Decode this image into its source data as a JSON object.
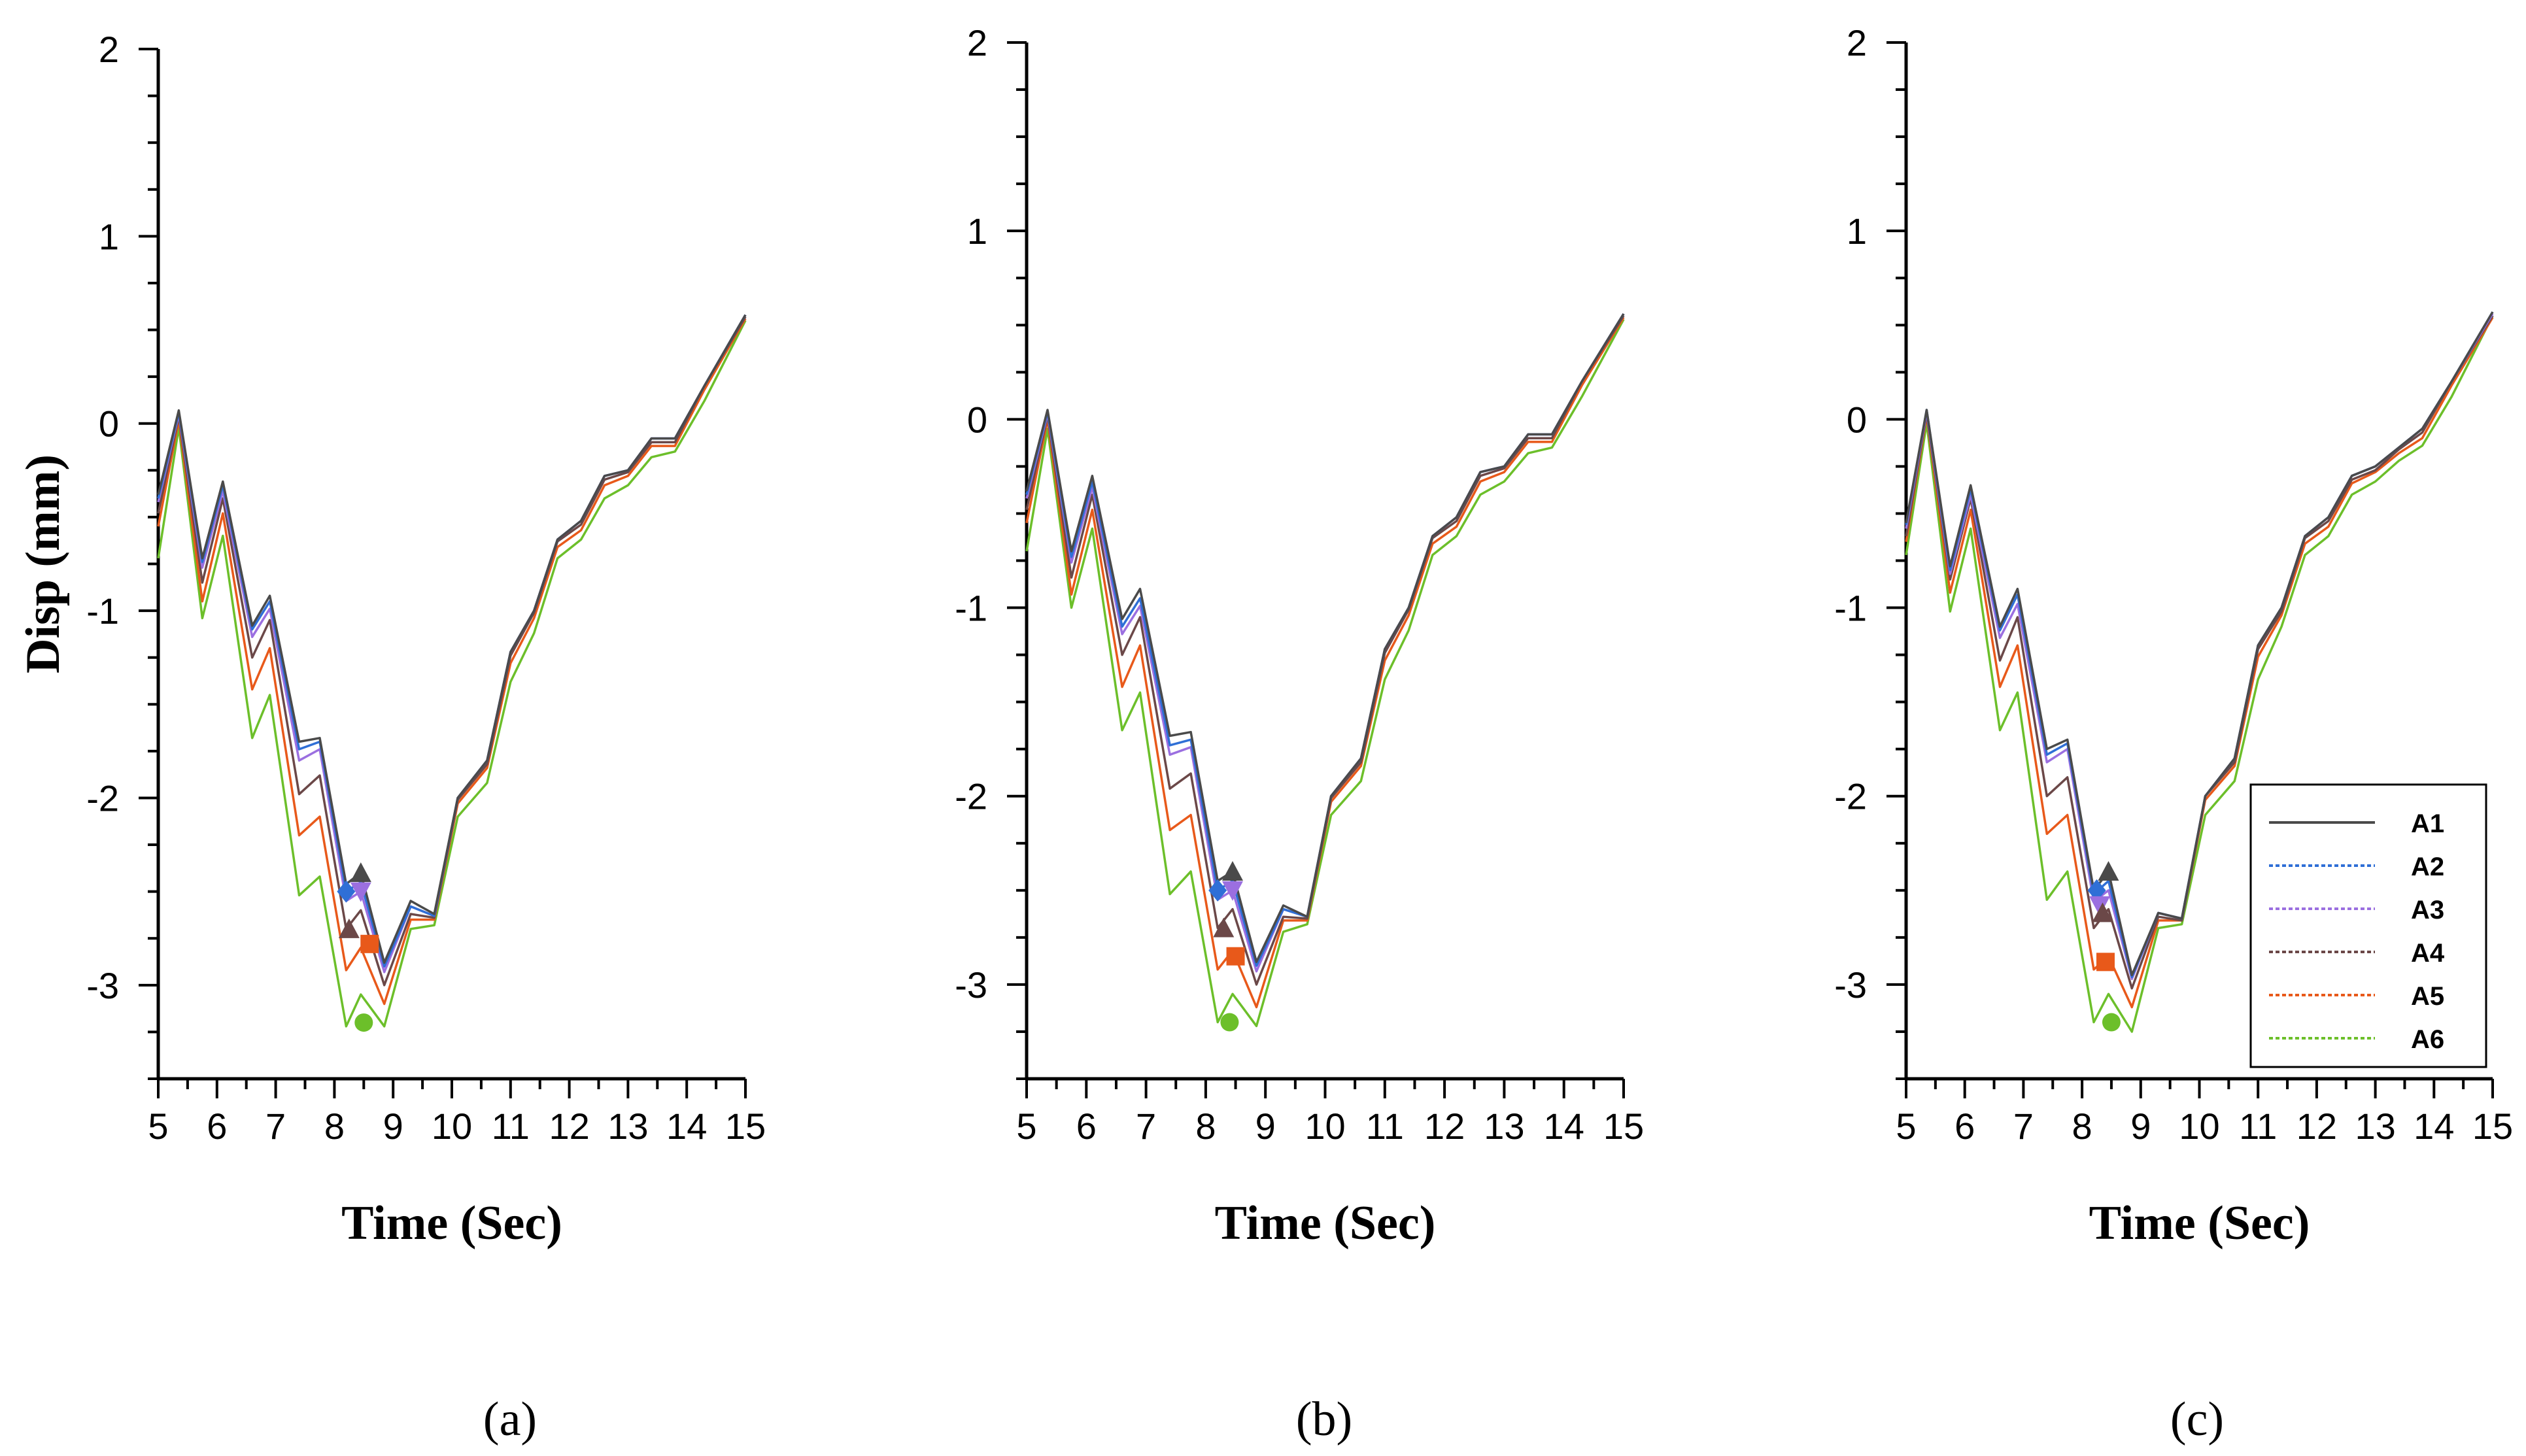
{
  "chart_data": [
    {
      "type": "line",
      "panel_label": "(a)",
      "xlabel": "Time (Sec)",
      "ylabel": "Disp (mm)",
      "xlim": [
        5,
        15
      ],
      "ylim": [
        -3.5,
        2
      ],
      "xticks": [
        "5",
        "6",
        "7",
        "8",
        "9",
        "10",
        "11",
        "12",
        "13",
        "14",
        "15"
      ],
      "yticks": [
        "2",
        "1",
        "0",
        "-1",
        "-2",
        "-3"
      ],
      "series": [
        {
          "name": "A1",
          "color": "#4a4a4a",
          "values": [
            -0.38,
            0.07,
            -0.72,
            -0.31,
            -1.08,
            -0.92,
            -1.7,
            -1.68,
            -2.46,
            -2.4,
            -2.88,
            -2.55,
            -2.62,
            -2.0,
            -1.8,
            -1.22,
            -1.0,
            -0.62,
            -0.52,
            -0.28,
            -0.25,
            -0.08,
            -0.08,
            0.2,
            0.58
          ]
        },
        {
          "name": "A2",
          "color": "#2f6fd6",
          "values": [
            -0.4,
            0.06,
            -0.74,
            -0.33,
            -1.1,
            -0.95,
            -1.74,
            -1.7,
            -2.5,
            -2.45,
            -2.9,
            -2.58,
            -2.63,
            -2.0,
            -1.8,
            -1.22,
            -1.0,
            -0.62,
            -0.52,
            -0.28,
            -0.25,
            -0.08,
            -0.08,
            0.2,
            0.58
          ]
        },
        {
          "name": "A3",
          "color": "#9b6fe0",
          "values": [
            -0.42,
            0.05,
            -0.77,
            -0.36,
            -1.14,
            -0.99,
            -1.8,
            -1.74,
            -2.55,
            -2.5,
            -2.93,
            -2.58,
            -2.63,
            -2.0,
            -1.8,
            -1.22,
            -1.0,
            -0.62,
            -0.52,
            -0.28,
            -0.25,
            -0.08,
            -0.08,
            0.2,
            0.58
          ]
        },
        {
          "name": "A4",
          "color": "#6b4848",
          "values": [
            -0.48,
            0.04,
            -0.85,
            -0.4,
            -1.25,
            -1.05,
            -1.98,
            -1.88,
            -2.7,
            -2.6,
            -3.0,
            -2.62,
            -2.64,
            -2.01,
            -1.82,
            -1.24,
            -1.01,
            -0.63,
            -0.54,
            -0.3,
            -0.26,
            -0.1,
            -0.1,
            0.2,
            0.57
          ]
        },
        {
          "name": "A5",
          "color": "#e8591a",
          "values": [
            -0.55,
            0.02,
            -0.95,
            -0.48,
            -1.42,
            -1.2,
            -2.2,
            -2.1,
            -2.92,
            -2.8,
            -3.1,
            -2.65,
            -2.65,
            -2.03,
            -1.84,
            -1.28,
            -1.04,
            -0.66,
            -0.57,
            -0.33,
            -0.28,
            -0.12,
            -0.12,
            0.18,
            0.56
          ]
        },
        {
          "name": "A6",
          "color": "#6cbf2a",
          "values": [
            -0.72,
            -0.02,
            -1.04,
            -0.6,
            -1.68,
            -1.45,
            -2.52,
            -2.42,
            -3.22,
            -3.05,
            -3.22,
            -2.7,
            -2.68,
            -2.1,
            -1.92,
            -1.38,
            -1.12,
            -0.72,
            -0.62,
            -0.4,
            -0.33,
            -0.18,
            -0.15,
            0.12,
            0.55
          ]
        }
      ],
      "x": [
        5.0,
        5.35,
        5.75,
        6.1,
        6.6,
        6.9,
        7.4,
        7.75,
        8.2,
        8.45,
        8.85,
        9.3,
        9.7,
        10.1,
        10.6,
        11.0,
        11.4,
        11.8,
        12.2,
        12.6,
        13.0,
        13.4,
        13.8,
        14.3,
        15.0
      ],
      "markers": [
        {
          "series": "A1",
          "shape": "triangle-up",
          "x": 8.45,
          "y": -2.4
        },
        {
          "series": "A2",
          "shape": "diamond",
          "x": 8.2,
          "y": -2.5
        },
        {
          "series": "A3",
          "shape": "triangle-down",
          "x": 8.45,
          "y": -2.5
        },
        {
          "series": "A4",
          "shape": "triangle-up",
          "x": 8.25,
          "y": -2.7
        },
        {
          "series": "A5",
          "shape": "square",
          "x": 8.6,
          "y": -2.78
        },
        {
          "series": "A6",
          "shape": "circle",
          "x": 8.5,
          "y": -3.2
        }
      ]
    },
    {
      "type": "line",
      "panel_label": "(b)",
      "xlabel": "Time (Sec)",
      "ylabel": "",
      "xlim": [
        5,
        15
      ],
      "ylim": [
        -3.5,
        2
      ],
      "xticks": [
        "5",
        "6",
        "7",
        "8",
        "9",
        "10",
        "11",
        "12",
        "13",
        "14",
        "15"
      ],
      "yticks": [
        "2",
        "1",
        "0",
        "-1",
        "-2",
        "-3"
      ],
      "series": [
        {
          "name": "A1",
          "color": "#4a4a4a",
          "values": [
            -0.38,
            0.05,
            -0.7,
            -0.3,
            -1.06,
            -0.9,
            -1.68,
            -1.66,
            -2.45,
            -2.4,
            -2.88,
            -2.58,
            -2.64,
            -2.0,
            -1.8,
            -1.22,
            -1.0,
            -0.62,
            -0.52,
            -0.28,
            -0.25,
            -0.08,
            -0.08,
            0.2,
            0.56
          ]
        },
        {
          "name": "A2",
          "color": "#2f6fd6",
          "values": [
            -0.4,
            0.04,
            -0.73,
            -0.33,
            -1.1,
            -0.95,
            -1.73,
            -1.7,
            -2.5,
            -2.45,
            -2.9,
            -2.6,
            -2.64,
            -2.0,
            -1.8,
            -1.22,
            -1.0,
            -0.62,
            -0.52,
            -0.28,
            -0.25,
            -0.08,
            -0.08,
            0.2,
            0.56
          ]
        },
        {
          "name": "A3",
          "color": "#9b6fe0",
          "values": [
            -0.42,
            0.03,
            -0.76,
            -0.36,
            -1.14,
            -0.99,
            -1.78,
            -1.74,
            -2.55,
            -2.5,
            -2.93,
            -2.6,
            -2.64,
            -2.0,
            -1.8,
            -1.22,
            -1.0,
            -0.62,
            -0.52,
            -0.28,
            -0.25,
            -0.08,
            -0.08,
            0.2,
            0.56
          ]
        },
        {
          "name": "A4",
          "color": "#6b4848",
          "values": [
            -0.48,
            0.02,
            -0.84,
            -0.4,
            -1.25,
            -1.05,
            -1.96,
            -1.88,
            -2.7,
            -2.6,
            -3.0,
            -2.64,
            -2.65,
            -2.01,
            -1.82,
            -1.24,
            -1.01,
            -0.63,
            -0.54,
            -0.3,
            -0.26,
            -0.1,
            -0.1,
            0.2,
            0.55
          ]
        },
        {
          "name": "A5",
          "color": "#e8591a",
          "values": [
            -0.55,
            0.0,
            -0.93,
            -0.48,
            -1.42,
            -1.2,
            -2.18,
            -2.1,
            -2.92,
            -2.82,
            -3.12,
            -2.66,
            -2.66,
            -2.03,
            -1.84,
            -1.28,
            -1.04,
            -0.66,
            -0.57,
            -0.33,
            -0.28,
            -0.12,
            -0.12,
            0.18,
            0.54
          ]
        },
        {
          "name": "A6",
          "color": "#6cbf2a",
          "values": [
            -0.7,
            -0.05,
            -1.0,
            -0.58,
            -1.65,
            -1.45,
            -2.52,
            -2.4,
            -3.2,
            -3.05,
            -3.22,
            -2.72,
            -2.68,
            -2.1,
            -1.92,
            -1.38,
            -1.12,
            -0.72,
            -0.62,
            -0.4,
            -0.33,
            -0.18,
            -0.15,
            0.12,
            0.53
          ]
        }
      ],
      "x": [
        5.0,
        5.35,
        5.75,
        6.1,
        6.6,
        6.9,
        7.4,
        7.75,
        8.2,
        8.45,
        8.85,
        9.3,
        9.7,
        10.1,
        10.6,
        11.0,
        11.4,
        11.8,
        12.2,
        12.6,
        13.0,
        13.4,
        13.8,
        14.3,
        15.0
      ],
      "markers": [
        {
          "series": "A1",
          "shape": "triangle-up",
          "x": 8.45,
          "y": -2.4
        },
        {
          "series": "A2",
          "shape": "diamond",
          "x": 8.2,
          "y": -2.5
        },
        {
          "series": "A3",
          "shape": "triangle-down",
          "x": 8.45,
          "y": -2.5
        },
        {
          "series": "A4",
          "shape": "triangle-up",
          "x": 8.3,
          "y": -2.7
        },
        {
          "series": "A5",
          "shape": "square",
          "x": 8.5,
          "y": -2.85
        },
        {
          "series": "A6",
          "shape": "circle",
          "x": 8.4,
          "y": -3.2
        }
      ]
    },
    {
      "type": "line",
      "panel_label": "(c)",
      "xlabel": "Time (Sec)",
      "ylabel": "",
      "xlim": [
        5,
        15
      ],
      "ylim": [
        -3.5,
        2
      ],
      "xticks": [
        "5",
        "6",
        "7",
        "8",
        "9",
        "10",
        "11",
        "12",
        "13",
        "14",
        "15"
      ],
      "yticks": [
        "2",
        "1",
        "0",
        "-1",
        "-2",
        "-3"
      ],
      "legend": {
        "position": "bottom-right",
        "entries": [
          "A1",
          "A2",
          "A3",
          "A4",
          "A5",
          "A6"
        ]
      },
      "series": [
        {
          "name": "A1",
          "color": "#4a4a4a",
          "values": [
            -0.55,
            0.05,
            -0.78,
            -0.35,
            -1.1,
            -0.9,
            -1.75,
            -1.7,
            -2.5,
            -2.4,
            -2.95,
            -2.62,
            -2.65,
            -2.0,
            -1.8,
            -1.2,
            -1.0,
            -0.62,
            -0.52,
            -0.3,
            -0.25,
            -0.15,
            -0.05,
            0.2,
            0.57
          ]
        },
        {
          "name": "A2",
          "color": "#2f6fd6",
          "values": [
            -0.56,
            0.05,
            -0.8,
            -0.37,
            -1.12,
            -0.93,
            -1.78,
            -1.72,
            -2.52,
            -2.45,
            -2.96,
            -2.62,
            -2.65,
            -2.0,
            -1.8,
            -1.2,
            -1.0,
            -0.62,
            -0.52,
            -0.3,
            -0.25,
            -0.15,
            -0.05,
            0.2,
            0.57
          ]
        },
        {
          "name": "A3",
          "color": "#9b6fe0",
          "values": [
            -0.58,
            0.04,
            -0.82,
            -0.4,
            -1.16,
            -0.98,
            -1.82,
            -1.75,
            -2.56,
            -2.5,
            -2.97,
            -2.62,
            -2.65,
            -2.0,
            -1.8,
            -1.2,
            -1.0,
            -0.62,
            -0.52,
            -0.3,
            -0.25,
            -0.15,
            -0.05,
            0.2,
            0.56
          ]
        },
        {
          "name": "A4",
          "color": "#6b4848",
          "values": [
            -0.62,
            0.03,
            -0.85,
            -0.42,
            -1.28,
            -1.05,
            -2.0,
            -1.9,
            -2.7,
            -2.6,
            -3.02,
            -2.64,
            -2.66,
            -2.0,
            -1.82,
            -1.22,
            -1.02,
            -0.63,
            -0.54,
            -0.32,
            -0.27,
            -0.16,
            -0.07,
            0.2,
            0.55
          ]
        },
        {
          "name": "A5",
          "color": "#e8591a",
          "values": [
            -0.65,
            0.02,
            -0.92,
            -0.48,
            -1.42,
            -1.2,
            -2.2,
            -2.1,
            -2.92,
            -2.85,
            -3.12,
            -2.66,
            -2.66,
            -2.02,
            -1.84,
            -1.26,
            -1.04,
            -0.66,
            -0.57,
            -0.34,
            -0.28,
            -0.18,
            -0.1,
            0.18,
            0.54
          ]
        },
        {
          "name": "A6",
          "color": "#6cbf2a",
          "values": [
            -0.72,
            -0.02,
            -1.02,
            -0.58,
            -1.65,
            -1.45,
            -2.55,
            -2.4,
            -3.2,
            -3.05,
            -3.25,
            -2.7,
            -2.68,
            -2.1,
            -1.92,
            -1.38,
            -1.1,
            -0.72,
            -0.62,
            -0.4,
            -0.33,
            -0.22,
            -0.14,
            0.12,
            0.55
          ]
        }
      ],
      "x": [
        5.0,
        5.35,
        5.75,
        6.1,
        6.6,
        6.9,
        7.4,
        7.75,
        8.2,
        8.45,
        8.85,
        9.3,
        9.7,
        10.1,
        10.6,
        11.0,
        11.4,
        11.8,
        12.2,
        12.6,
        13.0,
        13.4,
        13.8,
        14.3,
        15.0
      ],
      "markers": [
        {
          "series": "A1",
          "shape": "triangle-up",
          "x": 8.45,
          "y": -2.4
        },
        {
          "series": "A2",
          "shape": "diamond",
          "x": 8.25,
          "y": -2.5
        },
        {
          "series": "A3",
          "shape": "triangle-down",
          "x": 8.3,
          "y": -2.58
        },
        {
          "series": "A4",
          "shape": "triangle-up",
          "x": 8.35,
          "y": -2.62
        },
        {
          "series": "A5",
          "shape": "square",
          "x": 8.4,
          "y": -2.88
        },
        {
          "series": "A6",
          "shape": "circle",
          "x": 8.5,
          "y": -3.2
        }
      ]
    }
  ]
}
